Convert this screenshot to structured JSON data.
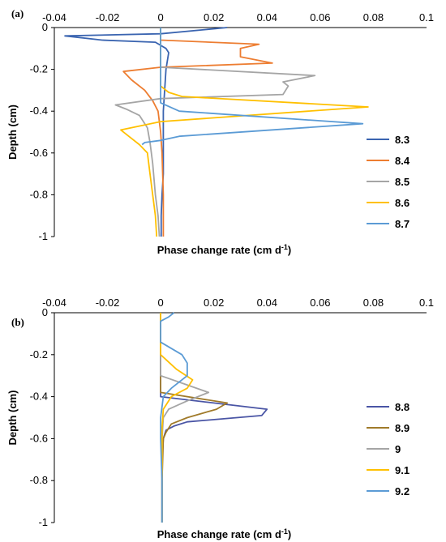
{
  "chart_data": [
    {
      "panel_label": "(a)",
      "type": "line",
      "x_axis_position": "top",
      "xlim": [
        -0.04,
        0.1
      ],
      "ylim": [
        -1,
        0
      ],
      "x_ticks": [
        "-0.04",
        "-0.02",
        "0",
        "0.02",
        "0.04",
        "0.06",
        "0.08",
        "0.1"
      ],
      "y_ticks": [
        "0",
        "-0.2",
        "-0.4",
        "-0.6",
        "-0.8",
        "-1"
      ],
      "xlabel": "Phase change rate (cm d",
      "xlabel_sup": "-1",
      "xlabel_end": ")",
      "ylabel": "Depth (cm)",
      "grid": false,
      "legend_position": "right",
      "series": [
        {
          "name": "8.3",
          "color": "#3a64b0",
          "x": [
            0.025,
            0.0,
            -0.036,
            -0.022,
            -0.002,
            0.002,
            0.003,
            0.002,
            0.001,
            0.001,
            0.001,
            0.0005,
            0.0002,
            0.0002
          ],
          "y": [
            0,
            -0.03,
            -0.04,
            -0.06,
            -0.07,
            -0.1,
            -0.12,
            -0.2,
            -0.4,
            -0.6,
            -0.7,
            -0.8,
            -0.9,
            -1
          ]
        },
        {
          "name": "8.4",
          "color": "#ed7d31",
          "x": [
            0.0,
            0.0,
            0.037,
            0.03,
            0.03,
            0.042,
            0.0,
            -0.014,
            -0.011,
            -0.006,
            -0.003,
            -0.001,
            0.0,
            0.0005,
            0.001,
            0.001,
            0.001
          ],
          "y": [
            0,
            -0.06,
            -0.08,
            -0.1,
            -0.14,
            -0.17,
            -0.19,
            -0.21,
            -0.25,
            -0.3,
            -0.35,
            -0.4,
            -0.5,
            -0.6,
            -0.8,
            -0.9,
            -1
          ]
        },
        {
          "name": "8.5",
          "color": "#a5a5a5",
          "x": [
            0.0,
            0.0,
            0.0,
            0.058,
            0.046,
            0.048,
            0.046,
            0.0,
            -0.017,
            -0.013,
            -0.008,
            -0.005,
            -0.004,
            -0.003,
            -0.002,
            -0.001,
            -0.0005
          ],
          "y": [
            0,
            -0.15,
            -0.19,
            -0.23,
            -0.26,
            -0.28,
            -0.32,
            -0.34,
            -0.37,
            -0.39,
            -0.42,
            -0.48,
            -0.55,
            -0.65,
            -0.8,
            -0.9,
            -1
          ]
        },
        {
          "name": "8.6",
          "color": "#ffc000",
          "x": [
            0.0,
            0.0,
            0.003,
            0.008,
            0.078,
            0.0,
            -0.015,
            -0.012,
            -0.008,
            -0.005,
            -0.004,
            -0.003,
            -0.002,
            -0.0015
          ],
          "y": [
            0,
            -0.28,
            -0.31,
            -0.33,
            -0.38,
            -0.45,
            -0.49,
            -0.52,
            -0.56,
            -0.6,
            -0.7,
            -0.8,
            -0.9,
            -1
          ]
        },
        {
          "name": "8.7",
          "color": "#5b9bd5",
          "x": [
            0.0,
            0.0,
            0.0,
            0.007,
            0.076,
            0.007,
            0.0,
            -0.006,
            -0.007
          ],
          "y": [
            0,
            -0.2,
            -0.36,
            -0.4,
            -0.46,
            -0.52,
            -0.54,
            -0.55,
            -0.56
          ]
        }
      ]
    },
    {
      "panel_label": "(b)",
      "type": "line",
      "x_axis_position": "top",
      "xlim": [
        -0.04,
        0.1
      ],
      "ylim": [
        -1,
        0
      ],
      "x_ticks": [
        "-0.04",
        "-0.02",
        "0",
        "0.02",
        "0.04",
        "0.06",
        "0.08",
        "0.1"
      ],
      "y_ticks": [
        "0",
        "-0.2",
        "-0.4",
        "-0.6",
        "-0.8",
        "-1"
      ],
      "xlabel": "Phase change rate (cm d",
      "xlabel_sup": "-1",
      "xlabel_end": ")",
      "ylabel": "Depth (cm)",
      "grid": false,
      "legend_position": "right",
      "series": [
        {
          "name": "8.8",
          "color": "#4a55a5",
          "x": [
            0.0,
            0.0,
            0.0,
            0.0,
            0.0,
            0.02,
            0.04,
            0.038,
            0.01,
            0.005,
            0.002,
            0.001,
            0.0005,
            0.0005,
            0.0005
          ],
          "y": [
            0,
            -0.1,
            -0.2,
            -0.3,
            -0.4,
            -0.43,
            -0.46,
            -0.49,
            -0.52,
            -0.54,
            -0.56,
            -0.6,
            -0.7,
            -0.8,
            -1
          ]
        },
        {
          "name": "8.9",
          "color": "#a07a2a",
          "x": [
            0.0,
            0.0,
            0.0,
            0.025,
            0.021,
            0.01,
            0.004,
            0.002,
            0.001,
            0.0005,
            0.0005
          ],
          "y": [
            0,
            -0.2,
            -0.38,
            -0.43,
            -0.46,
            -0.5,
            -0.53,
            -0.57,
            -0.6,
            -0.8,
            -1
          ]
        },
        {
          "name": "9",
          "color": "#a5a5a5",
          "x": [
            0.0,
            0.0,
            0.0,
            0.018,
            0.01,
            0.003,
            0.001,
            0.0005,
            0.0005,
            0.0005
          ],
          "y": [
            0,
            -0.2,
            -0.3,
            -0.38,
            -0.42,
            -0.46,
            -0.5,
            -0.6,
            -0.8,
            -1
          ]
        },
        {
          "name": "9.1",
          "color": "#ffc000",
          "x": [
            0.0,
            0.0,
            0.0,
            0.006,
            0.012,
            0.01,
            0.004,
            0.001,
            0.0005,
            0.0005,
            0.0005
          ],
          "y": [
            0,
            -0.1,
            -0.2,
            -0.27,
            -0.32,
            -0.36,
            -0.4,
            -0.46,
            -0.55,
            -0.8,
            -1
          ]
        },
        {
          "name": "9.2",
          "color": "#5b9bd5",
          "x": [
            0.005,
            0.003,
            0.0,
            0.0,
            0.0,
            0.008,
            0.01,
            0.01,
            0.004,
            0.001,
            0.0,
            0.0,
            0.0005,
            0.0005
          ],
          "y": [
            0,
            -0.02,
            -0.04,
            -0.08,
            -0.14,
            -0.2,
            -0.24,
            -0.3,
            -0.36,
            -0.4,
            -0.5,
            -0.6,
            -0.8,
            -1
          ]
        }
      ]
    }
  ]
}
